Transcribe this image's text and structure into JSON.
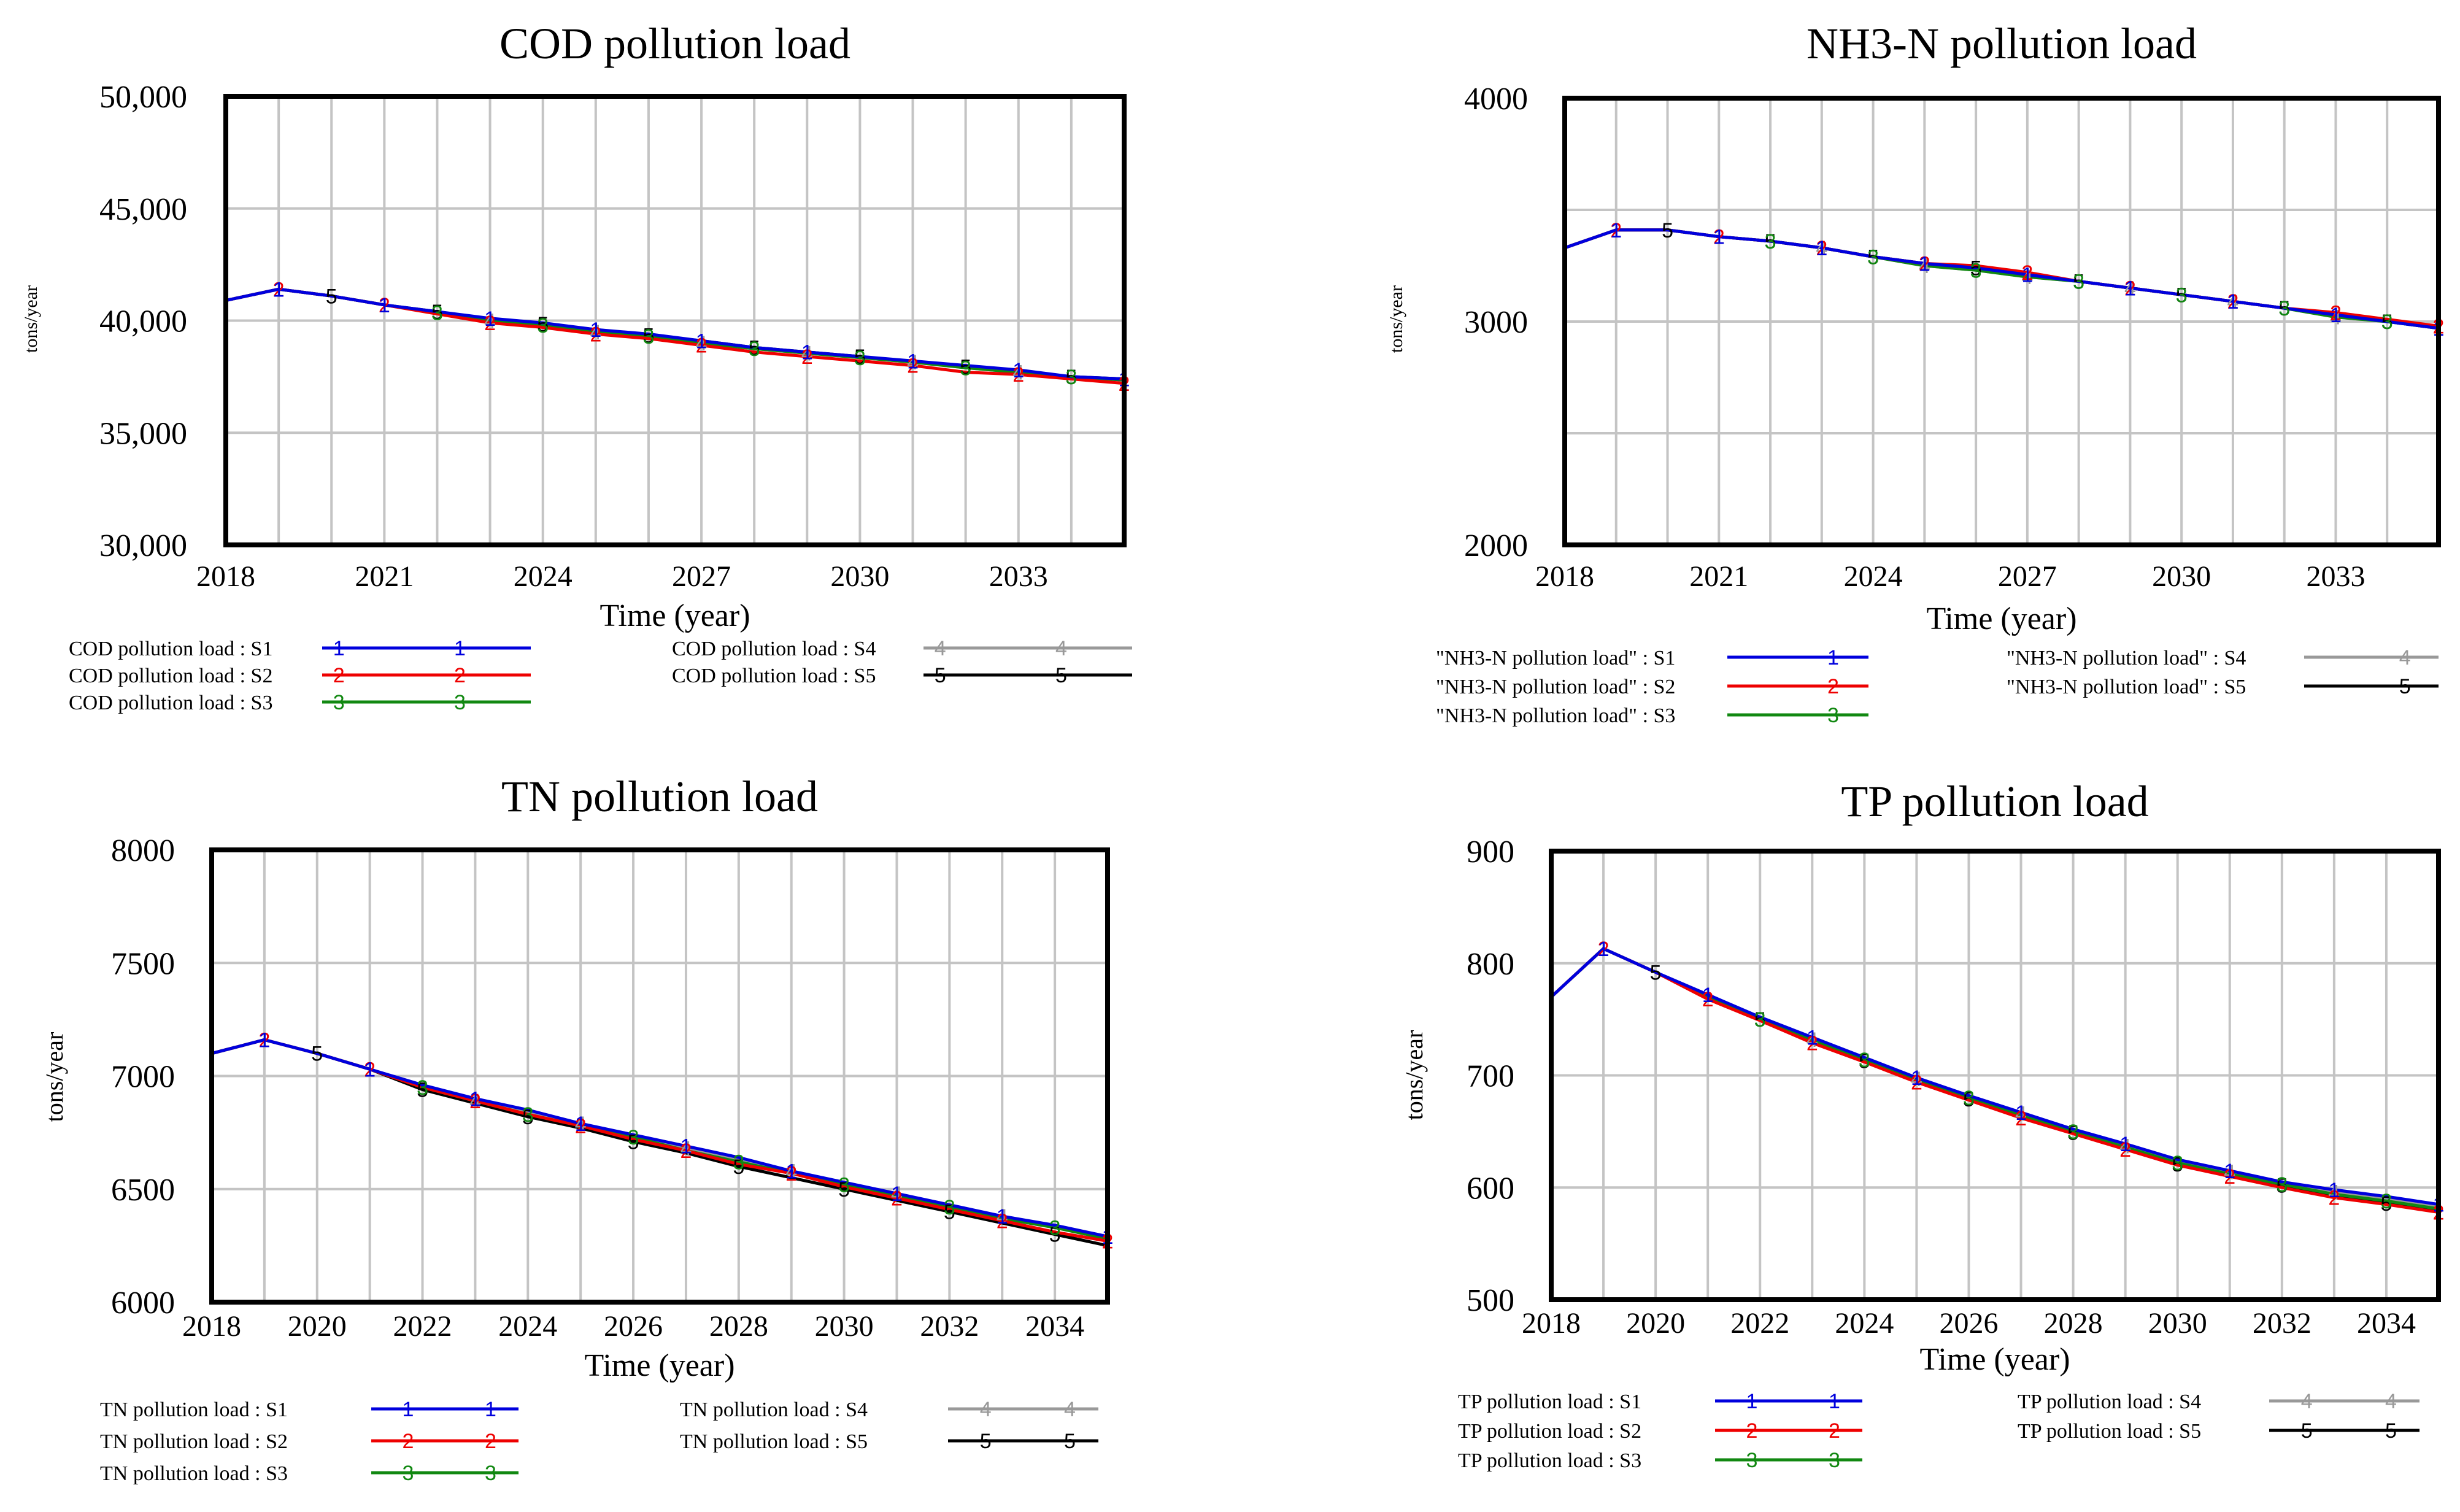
{
  "chart_data": [
    {
      "type": "line",
      "title": "COD pollution load",
      "xlabel": "Time (year)",
      "ylabel": "tons/year",
      "ylim": [
        30000,
        50000
      ],
      "xlim": [
        2018,
        2035
      ],
      "xticks": [
        2018,
        2021,
        2024,
        2027,
        2030,
        2033
      ],
      "xtick_labels": [
        "2018",
        "2021",
        "2024",
        "2027",
        "2030",
        "2033"
      ],
      "yticks": [
        30000,
        35000,
        40000,
        45000,
        50000
      ],
      "ytick_labels": [
        "30,000",
        "35,000",
        "40,000",
        "45,000",
        "50,000"
      ],
      "grid_years": [
        2019,
        2020,
        2021,
        2022,
        2023,
        2024,
        2025,
        2026,
        2027,
        2028,
        2029,
        2030,
        2031,
        2032,
        2033,
        2034
      ],
      "x": [
        2018,
        2019,
        2020,
        2021,
        2022,
        2023,
        2024,
        2025,
        2026,
        2027,
        2028,
        2029,
        2030,
        2031,
        2032,
        2033,
        2034,
        2035
      ],
      "series": [
        {
          "name": "S1",
          "marker": "1",
          "color": "#0000dd",
          "values": [
            40900,
            41400,
            41100,
            40700,
            40400,
            40100,
            39900,
            39600,
            39400,
            39100,
            38800,
            38600,
            38400,
            38200,
            38000,
            37800,
            37500,
            37400
          ]
        },
        {
          "name": "S2",
          "marker": "2",
          "color": "#ee0000",
          "values": [
            40900,
            41400,
            41100,
            40700,
            40300,
            39900,
            39700,
            39400,
            39200,
            38900,
            38600,
            38400,
            38200,
            38000,
            37700,
            37600,
            37400,
            37200
          ]
        },
        {
          "name": "S3",
          "marker": "3",
          "color": "#118811",
          "values": [
            40900,
            41400,
            41100,
            40700,
            40350,
            40000,
            39800,
            39500,
            39300,
            39000,
            38750,
            38550,
            38350,
            38150,
            37900,
            37700,
            37500,
            37350
          ]
        },
        {
          "name": "S4",
          "marker": "4",
          "color": "#999999",
          "values": [
            40900,
            41400,
            41100,
            40700,
            40350,
            40000,
            39800,
            39500,
            39300,
            39000,
            38750,
            38550,
            38350,
            38150,
            37900,
            37700,
            37500,
            37350
          ]
        },
        {
          "name": "S5",
          "marker": "5",
          "color": "#000000",
          "values": [
            40900,
            41400,
            41100,
            40700,
            40400,
            40050,
            39850,
            39600,
            39350,
            39100,
            38800,
            38600,
            38400,
            38150,
            37950,
            37750,
            37500,
            37400
          ]
        }
      ],
      "legend": [
        "COD pollution load : S1",
        "COD pollution load : S2",
        "COD pollution load : S3",
        "COD pollution load : S4",
        "COD pollution load : S5"
      ]
    },
    {
      "type": "line",
      "title": "NH3-N pollution load",
      "xlabel": "Time (year)",
      "ylabel": "tons/year",
      "ylim": [
        2000,
        4000
      ],
      "xlim": [
        2018,
        2035
      ],
      "xticks": [
        2018,
        2021,
        2024,
        2027,
        2030,
        2033
      ],
      "xtick_labels": [
        "2018",
        "2021",
        "2024",
        "2027",
        "2030",
        "2033"
      ],
      "yticks": [
        2000,
        3000,
        4000
      ],
      "ytick_labels": [
        "2000",
        "3000",
        "4000"
      ],
      "grid_years": [
        2019,
        2020,
        2021,
        2022,
        2023,
        2024,
        2025,
        2026,
        2027,
        2028,
        2029,
        2030,
        2031,
        2032,
        2033,
        2034
      ],
      "x": [
        2018,
        2019,
        2020,
        2021,
        2022,
        2023,
        2024,
        2025,
        2026,
        2027,
        2028,
        2029,
        2030,
        2031,
        2032,
        2033,
        2034,
        2035
      ],
      "series": [
        {
          "name": "S1",
          "marker": "1",
          "color": "#0000dd",
          "values": [
            3330,
            3410,
            3410,
            3380,
            3360,
            3330,
            3290,
            3260,
            3240,
            3210,
            3180,
            3150,
            3120,
            3090,
            3060,
            3030,
            3000,
            2970
          ]
        },
        {
          "name": "S2",
          "marker": "2",
          "color": "#ee0000",
          "values": [
            3330,
            3410,
            3410,
            3380,
            3360,
            3330,
            3290,
            3260,
            3250,
            3220,
            3180,
            3150,
            3120,
            3090,
            3060,
            3040,
            3010,
            2980
          ]
        },
        {
          "name": "S3",
          "marker": "3",
          "color": "#118811",
          "values": [
            3330,
            3410,
            3410,
            3380,
            3360,
            3330,
            3290,
            3250,
            3230,
            3200,
            3180,
            3150,
            3120,
            3090,
            3060,
            3020,
            3000,
            2970
          ]
        },
        {
          "name": "S4",
          "marker": "4",
          "color": "#999999",
          "values": [
            3330,
            3410,
            3410,
            3380,
            3360,
            3330,
            3290,
            3250,
            3230,
            3200,
            3180,
            3150,
            3120,
            3090,
            3060,
            3020,
            3000,
            2970
          ]
        },
        {
          "name": "S5",
          "marker": "5",
          "color": "#000000",
          "values": [
            3330,
            3410,
            3410,
            3380,
            3360,
            3330,
            3290,
            3260,
            3240,
            3210,
            3180,
            3150,
            3120,
            3090,
            3060,
            3030,
            3000,
            2970
          ]
        }
      ],
      "legend": [
        "\"NH3-N pollution load\" : S1",
        "\"NH3-N pollution load\" : S2",
        "\"NH3-N pollution load\" : S3",
        "\"NH3-N pollution load\" : S4",
        "\"NH3-N pollution load\" : S5"
      ]
    },
    {
      "type": "line",
      "title": "TN pollution load",
      "xlabel": "Time (year)",
      "ylabel": "tons/year",
      "ylim": [
        6000,
        8000
      ],
      "xlim": [
        2018,
        2035
      ],
      "xticks": [
        2018,
        2020,
        2022,
        2024,
        2026,
        2028,
        2030,
        2032,
        2034
      ],
      "xtick_labels": [
        "2018",
        "2020",
        "2022",
        "2024",
        "2026",
        "2028",
        "2030",
        "2032",
        "2034"
      ],
      "yticks": [
        6000,
        6500,
        7000,
        7500,
        8000
      ],
      "ytick_labels": [
        "6000",
        "6500",
        "7000",
        "7500",
        "8000"
      ],
      "grid_years": [
        2019,
        2020,
        2021,
        2022,
        2023,
        2024,
        2025,
        2026,
        2027,
        2028,
        2029,
        2030,
        2031,
        2032,
        2033,
        2034
      ],
      "x": [
        2018,
        2019,
        2020,
        2021,
        2022,
        2023,
        2024,
        2025,
        2026,
        2027,
        2028,
        2029,
        2030,
        2031,
        2032,
        2033,
        2034,
        2035
      ],
      "series": [
        {
          "name": "S1",
          "marker": "1",
          "color": "#0000dd",
          "values": [
            7100,
            7160,
            7100,
            7030,
            6960,
            6900,
            6850,
            6790,
            6740,
            6690,
            6640,
            6580,
            6530,
            6480,
            6430,
            6380,
            6340,
            6290
          ]
        },
        {
          "name": "S2",
          "marker": "2",
          "color": "#ee0000",
          "values": [
            7100,
            7160,
            7100,
            7030,
            6950,
            6890,
            6830,
            6780,
            6720,
            6670,
            6610,
            6570,
            6510,
            6460,
            6410,
            6360,
            6310,
            6270
          ]
        },
        {
          "name": "S3",
          "marker": "3",
          "color": "#118811",
          "values": [
            7100,
            7160,
            7100,
            7030,
            6950,
            6890,
            6830,
            6780,
            6730,
            6670,
            6620,
            6570,
            6520,
            6470,
            6420,
            6370,
            6330,
            6280
          ]
        },
        {
          "name": "S4",
          "marker": "4",
          "color": "#999999",
          "values": [
            7100,
            7160,
            7100,
            7030,
            6950,
            6890,
            6840,
            6790,
            6730,
            6680,
            6630,
            6580,
            6520,
            6480,
            6420,
            6380,
            6330,
            6280
          ]
        },
        {
          "name": "S5",
          "marker": "5",
          "color": "#000000",
          "values": [
            7100,
            7160,
            7100,
            7030,
            6940,
            6880,
            6820,
            6770,
            6710,
            6660,
            6600,
            6550,
            6500,
            6450,
            6400,
            6350,
            6300,
            6250
          ]
        }
      ],
      "legend": [
        "TN pollution load : S1",
        "TN pollution load : S2",
        "TN pollution load : S3",
        "TN pollution load : S4",
        "TN pollution load : S5"
      ]
    },
    {
      "type": "line",
      "title": "TP pollution load",
      "xlabel": "Time (year)",
      "ylabel": "tons/year",
      "ylim": [
        500,
        900
      ],
      "xlim": [
        2018,
        2035
      ],
      "xticks": [
        2018,
        2020,
        2022,
        2024,
        2026,
        2028,
        2030,
        2032,
        2034
      ],
      "xtick_labels": [
        "2018",
        "2020",
        "2022",
        "2024",
        "2026",
        "2028",
        "2030",
        "2032",
        "2034"
      ],
      "yticks": [
        500,
        600,
        700,
        800,
        900
      ],
      "ytick_labels": [
        "500",
        "600",
        "700",
        "800",
        "900"
      ],
      "grid_years": [
        2019,
        2020,
        2021,
        2022,
        2023,
        2024,
        2025,
        2026,
        2027,
        2028,
        2029,
        2030,
        2031,
        2032,
        2033,
        2034
      ],
      "x": [
        2018,
        2019,
        2020,
        2021,
        2022,
        2023,
        2024,
        2025,
        2026,
        2027,
        2028,
        2029,
        2030,
        2031,
        2032,
        2033,
        2034,
        2035
      ],
      "series": [
        {
          "name": "S1",
          "marker": "1",
          "color": "#0000dd",
          "values": [
            770,
            813,
            792,
            772,
            752,
            734,
            716,
            698,
            682,
            667,
            652,
            639,
            625,
            615,
            605,
            598,
            592,
            585
          ]
        },
        {
          "name": "S2",
          "marker": "2",
          "color": "#ee0000",
          "values": [
            770,
            813,
            792,
            768,
            749,
            729,
            712,
            694,
            678,
            662,
            648,
            634,
            620,
            610,
            600,
            591,
            585,
            578
          ]
        },
        {
          "name": "S3",
          "marker": "3",
          "color": "#118811",
          "values": [
            770,
            813,
            792,
            770,
            750,
            731,
            714,
            696,
            680,
            664,
            650,
            636,
            622,
            612,
            603,
            594,
            588,
            581
          ]
        },
        {
          "name": "S4",
          "marker": "4",
          "color": "#999999",
          "values": [
            770,
            813,
            792,
            771,
            751,
            732,
            714,
            697,
            681,
            666,
            651,
            637,
            624,
            614,
            604,
            596,
            590,
            583
          ]
        },
        {
          "name": "S5",
          "marker": "5",
          "color": "#000000",
          "values": [
            770,
            813,
            792,
            770,
            750,
            731,
            713,
            695,
            679,
            663,
            649,
            635,
            621,
            611,
            602,
            593,
            586,
            580
          ]
        }
      ],
      "legend": [
        "TP pollution load : S1",
        "TP pollution load : S2",
        "TP pollution load : S3",
        "TP pollution load : S4",
        "TP pollution load : S5"
      ]
    }
  ]
}
